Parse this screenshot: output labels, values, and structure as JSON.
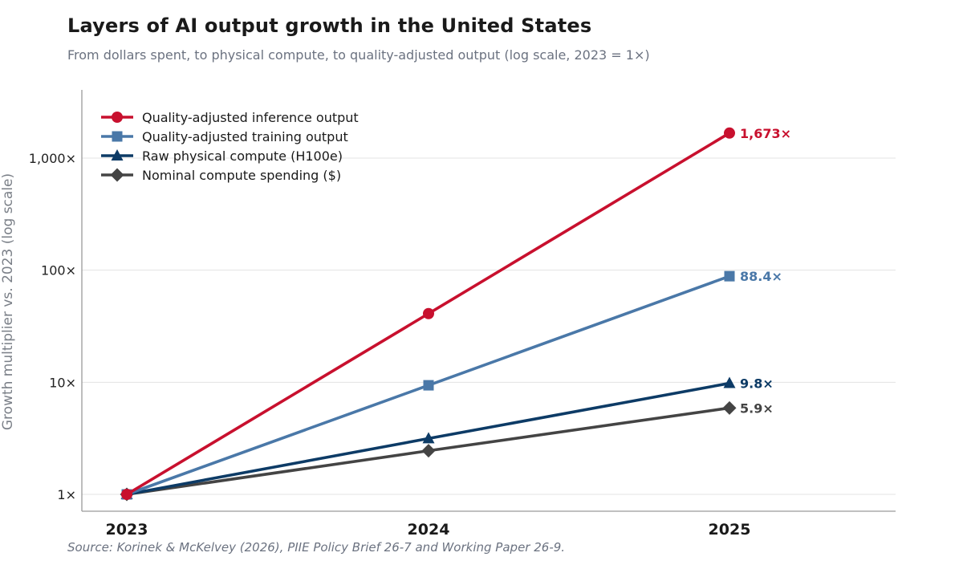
{
  "title": "Layers of AI output growth in the United States",
  "subtitle": "From dollars spent, to physical compute, to quality-adjusted output (log scale, 2023 = 1×)",
  "source": "Source: Korinek & McKelvey (2026), PIIE Policy Brief 26-7 and Working Paper 26-9.",
  "chart_data": {
    "type": "line",
    "x": [
      2023,
      2024,
      2025
    ],
    "xticks": [
      "2023",
      "2024",
      "2025"
    ],
    "ylabel": "Growth multiplier vs. 2023 (log scale)",
    "yscale": "log",
    "ylim": [
      0.7,
      4000
    ],
    "yticks": [
      1,
      10,
      100,
      1000
    ],
    "ytick_labels": [
      "1×",
      "10×",
      "100×",
      "1,000×"
    ],
    "grid": "horizontal",
    "legend_position": "top-left",
    "series": [
      {
        "name": "Quality-adjusted inference output",
        "values": [
          1,
          41,
          1673
        ],
        "end_label": "1,673×",
        "color": "#c8102e",
        "marker": "circle"
      },
      {
        "name": "Quality-adjusted training output",
        "values": [
          1,
          9.4,
          88.4
        ],
        "end_label": "88.4×",
        "color": "#4a78a8",
        "marker": "square"
      },
      {
        "name": "Raw physical compute (H100e)",
        "values": [
          1,
          3.15,
          9.8
        ],
        "end_label": "9.8×",
        "color": "#0d3b66",
        "marker": "triangle"
      },
      {
        "name": "Nominal compute spending ($)",
        "values": [
          1,
          2.45,
          5.9
        ],
        "end_label": "5.9×",
        "color": "#444444",
        "marker": "diamond"
      }
    ]
  }
}
